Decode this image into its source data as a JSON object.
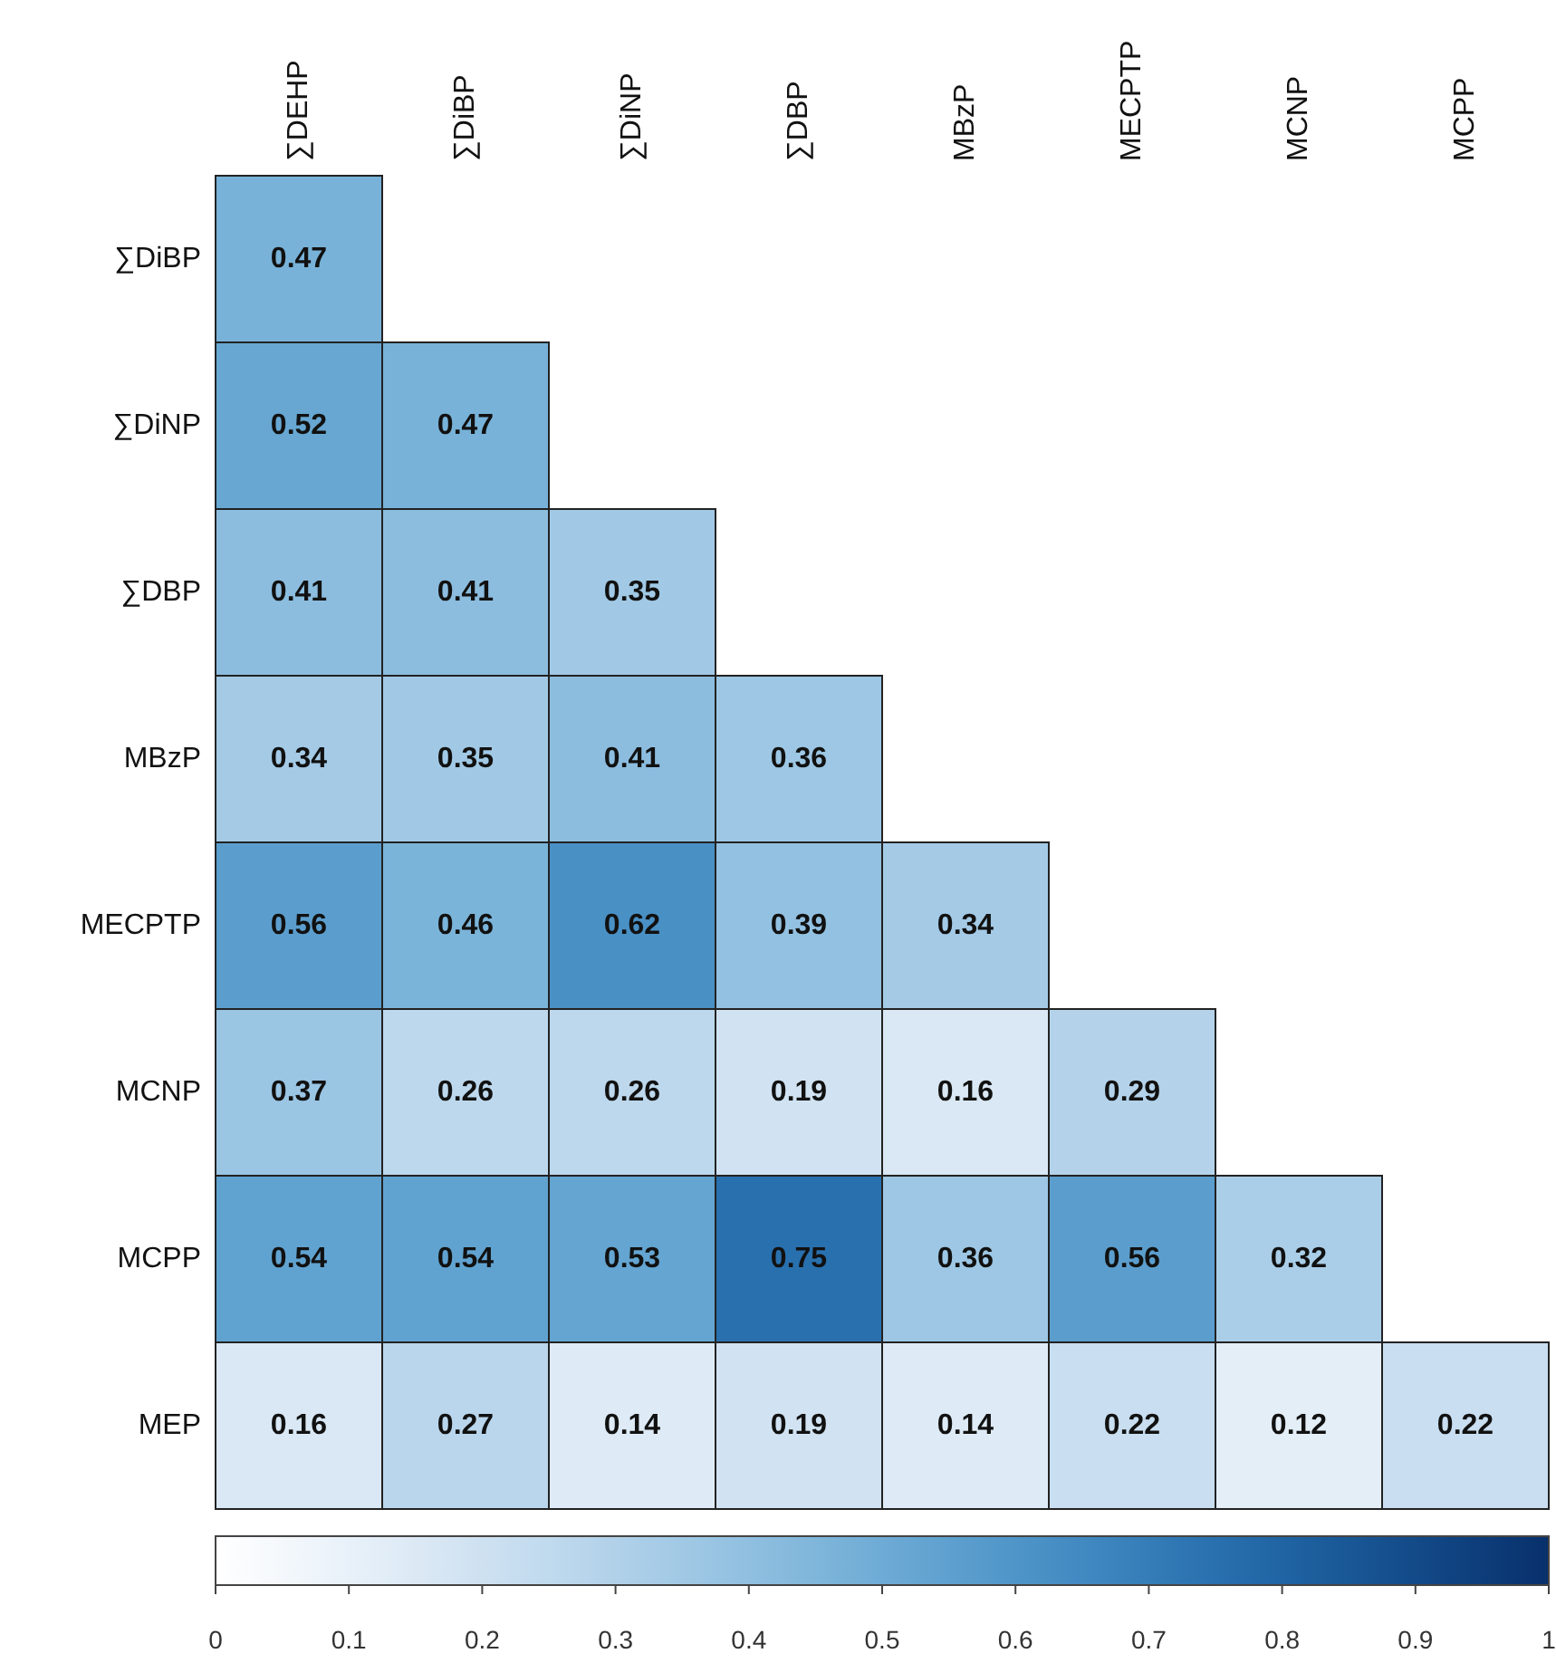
{
  "chart_data": {
    "type": "heatmap",
    "categories": [
      "∑DEHP",
      "∑DiBP",
      "∑DiNP",
      "∑DBP",
      "MBzP",
      "MECPTP",
      "MCNP",
      "MCPP"
    ],
    "y_categories": [
      "∑DiBP",
      "∑DiNP",
      "∑DBP",
      "MBzP",
      "MECPTP",
      "MCNP",
      "MCPP",
      "MEP"
    ],
    "cells": [
      [
        0.47,
        null,
        null,
        null,
        null,
        null,
        null,
        null
      ],
      [
        0.52,
        0.47,
        null,
        null,
        null,
        null,
        null,
        null
      ],
      [
        0.41,
        0.41,
        0.35,
        null,
        null,
        null,
        null,
        null
      ],
      [
        0.34,
        0.35,
        0.41,
        0.36,
        null,
        null,
        null,
        null
      ],
      [
        0.56,
        0.46,
        0.62,
        0.39,
        0.34,
        null,
        null,
        null
      ],
      [
        0.37,
        0.26,
        0.26,
        0.19,
        0.16,
        0.29,
        null,
        null
      ],
      [
        0.54,
        0.54,
        0.53,
        0.75,
        0.36,
        0.56,
        0.32,
        null
      ],
      [
        0.16,
        0.27,
        0.14,
        0.19,
        0.14,
        0.22,
        0.12,
        0.22
      ]
    ],
    "data_labels": true,
    "clim": [
      0,
      1
    ],
    "cticks": [
      0,
      0.1,
      0.2,
      0.3,
      0.4,
      0.5,
      0.6,
      0.7,
      0.8,
      0.9,
      1
    ]
  }
}
